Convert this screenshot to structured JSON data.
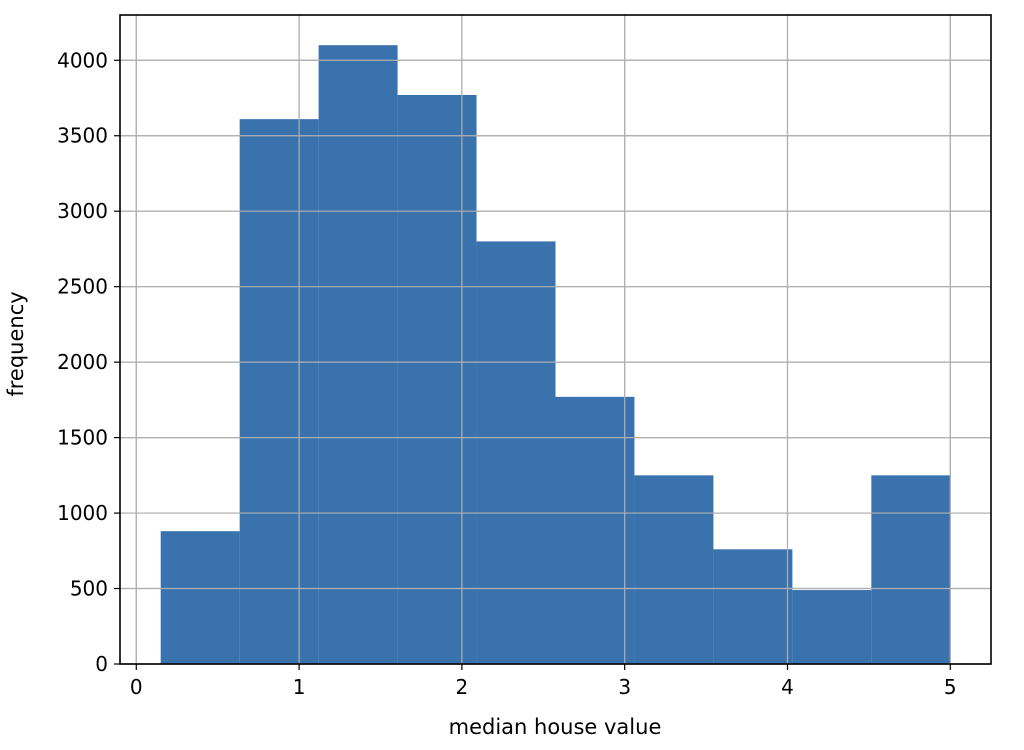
{
  "chart_data": {
    "type": "bar",
    "title": "",
    "xlabel": "median house value",
    "ylabel": "frequency",
    "xlim": [
      -0.1,
      5.25
    ],
    "ylim": [
      0,
      4300
    ],
    "grid": true,
    "bar_color": "#3a72ad",
    "bins": [
      {
        "x0": 0.15,
        "x1": 0.635,
        "value": 880
      },
      {
        "x0": 0.635,
        "x1": 1.12,
        "value": 3610
      },
      {
        "x0": 1.12,
        "x1": 1.605,
        "value": 4100
      },
      {
        "x0": 1.605,
        "x1": 2.09,
        "value": 3770
      },
      {
        "x0": 2.09,
        "x1": 2.575,
        "value": 2800
      },
      {
        "x0": 2.575,
        "x1": 3.06,
        "value": 1770
      },
      {
        "x0": 3.06,
        "x1": 3.545,
        "value": 1250
      },
      {
        "x0": 3.545,
        "x1": 4.03,
        "value": 760
      },
      {
        "x0": 4.03,
        "x1": 4.515,
        "value": 490
      },
      {
        "x0": 4.515,
        "x1": 5.0,
        "value": 1250
      }
    ],
    "x_ticks": [
      0,
      1,
      2,
      3,
      4,
      5
    ],
    "x_tick_labels": [
      "0",
      "1",
      "2",
      "3",
      "4",
      "5"
    ],
    "y_ticks": [
      0,
      500,
      1000,
      1500,
      2000,
      2500,
      3000,
      3500,
      4000
    ],
    "y_tick_labels": [
      "0",
      "500",
      "1000",
      "1500",
      "2000",
      "2500",
      "3000",
      "3500",
      "4000"
    ]
  }
}
